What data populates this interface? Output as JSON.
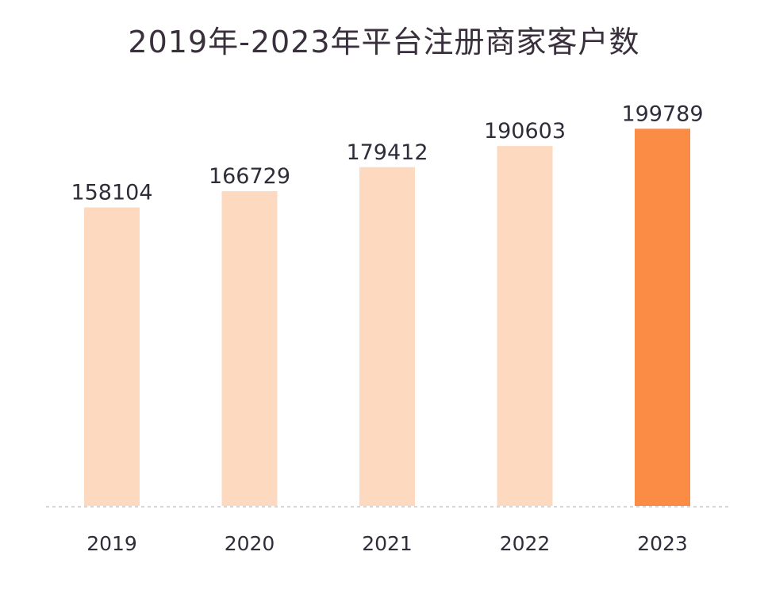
{
  "chart_data": {
    "type": "bar",
    "title": "2019年-2023年平台注册商家客户数",
    "xlabel": "",
    "ylabel": "",
    "categories": [
      "2019",
      "2020",
      "2021",
      "2022",
      "2023"
    ],
    "values": [
      158104,
      166729,
      179412,
      190603,
      199789
    ],
    "value_labels": [
      "158104",
      "166729",
      "179412",
      "190603",
      "199789"
    ],
    "ylim": [
      0,
      210000
    ],
    "grid": false,
    "legend": "none",
    "highlight_index": 4,
    "colors": {
      "bar": "#fdd9bf",
      "highlight": "#fa8c45",
      "baseline": "#c9c9c9"
    }
  }
}
